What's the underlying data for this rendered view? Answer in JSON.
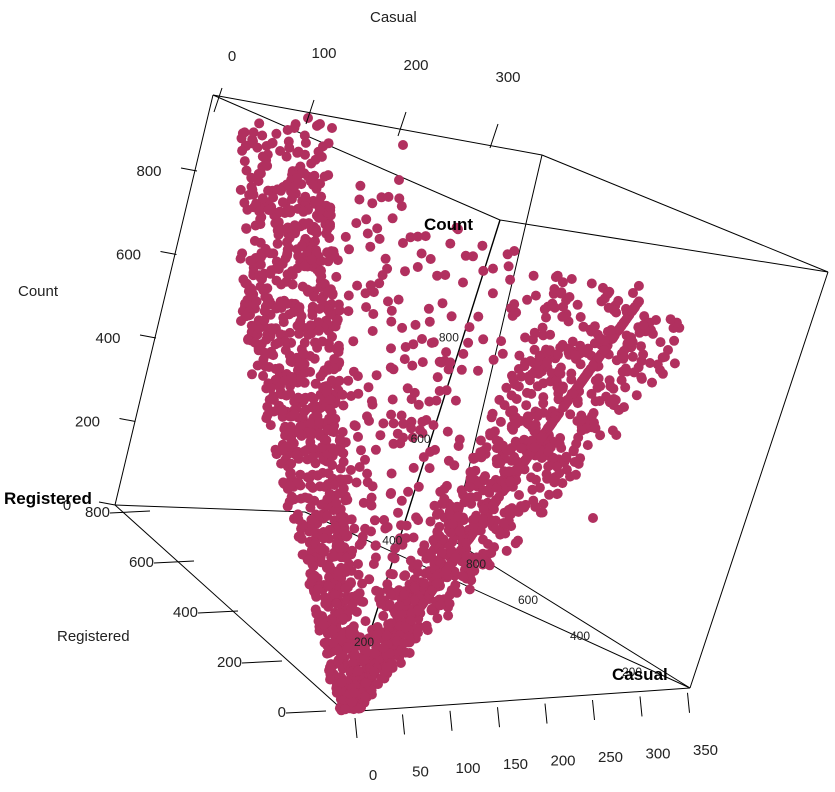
{
  "chart_data": {
    "type": "scatter",
    "title": "",
    "axes_3d": {
      "casual": {
        "label": "Casual",
        "range": [
          0,
          350
        ],
        "ticks": [
          0,
          50,
          100,
          150,
          200,
          250,
          300,
          350
        ]
      },
      "registered": {
        "label": "Registered",
        "range": [
          0,
          900
        ],
        "ticks": [
          0,
          200,
          400,
          600,
          800
        ]
      },
      "count": {
        "label": "Count",
        "range": [
          0,
          1000
        ],
        "ticks": [
          200,
          400,
          600,
          800
        ]
      }
    },
    "left_axis": {
      "label": "Count",
      "ticks": [
        0,
        200,
        400,
        600,
        800
      ]
    },
    "top_axis": {
      "label": "Casual",
      "ticks": [
        0,
        100,
        200,
        300
      ]
    },
    "inner_count_ticks": [
      200,
      400,
      600,
      800
    ],
    "inner_registered_ticks": [
      800,
      600,
      400,
      200
    ],
    "point_color": "#b1305f",
    "grid": false,
    "legend": "none",
    "series": [
      {
        "name": "",
        "point_count": 0,
        "points_note": ""
      }
    ]
  }
}
